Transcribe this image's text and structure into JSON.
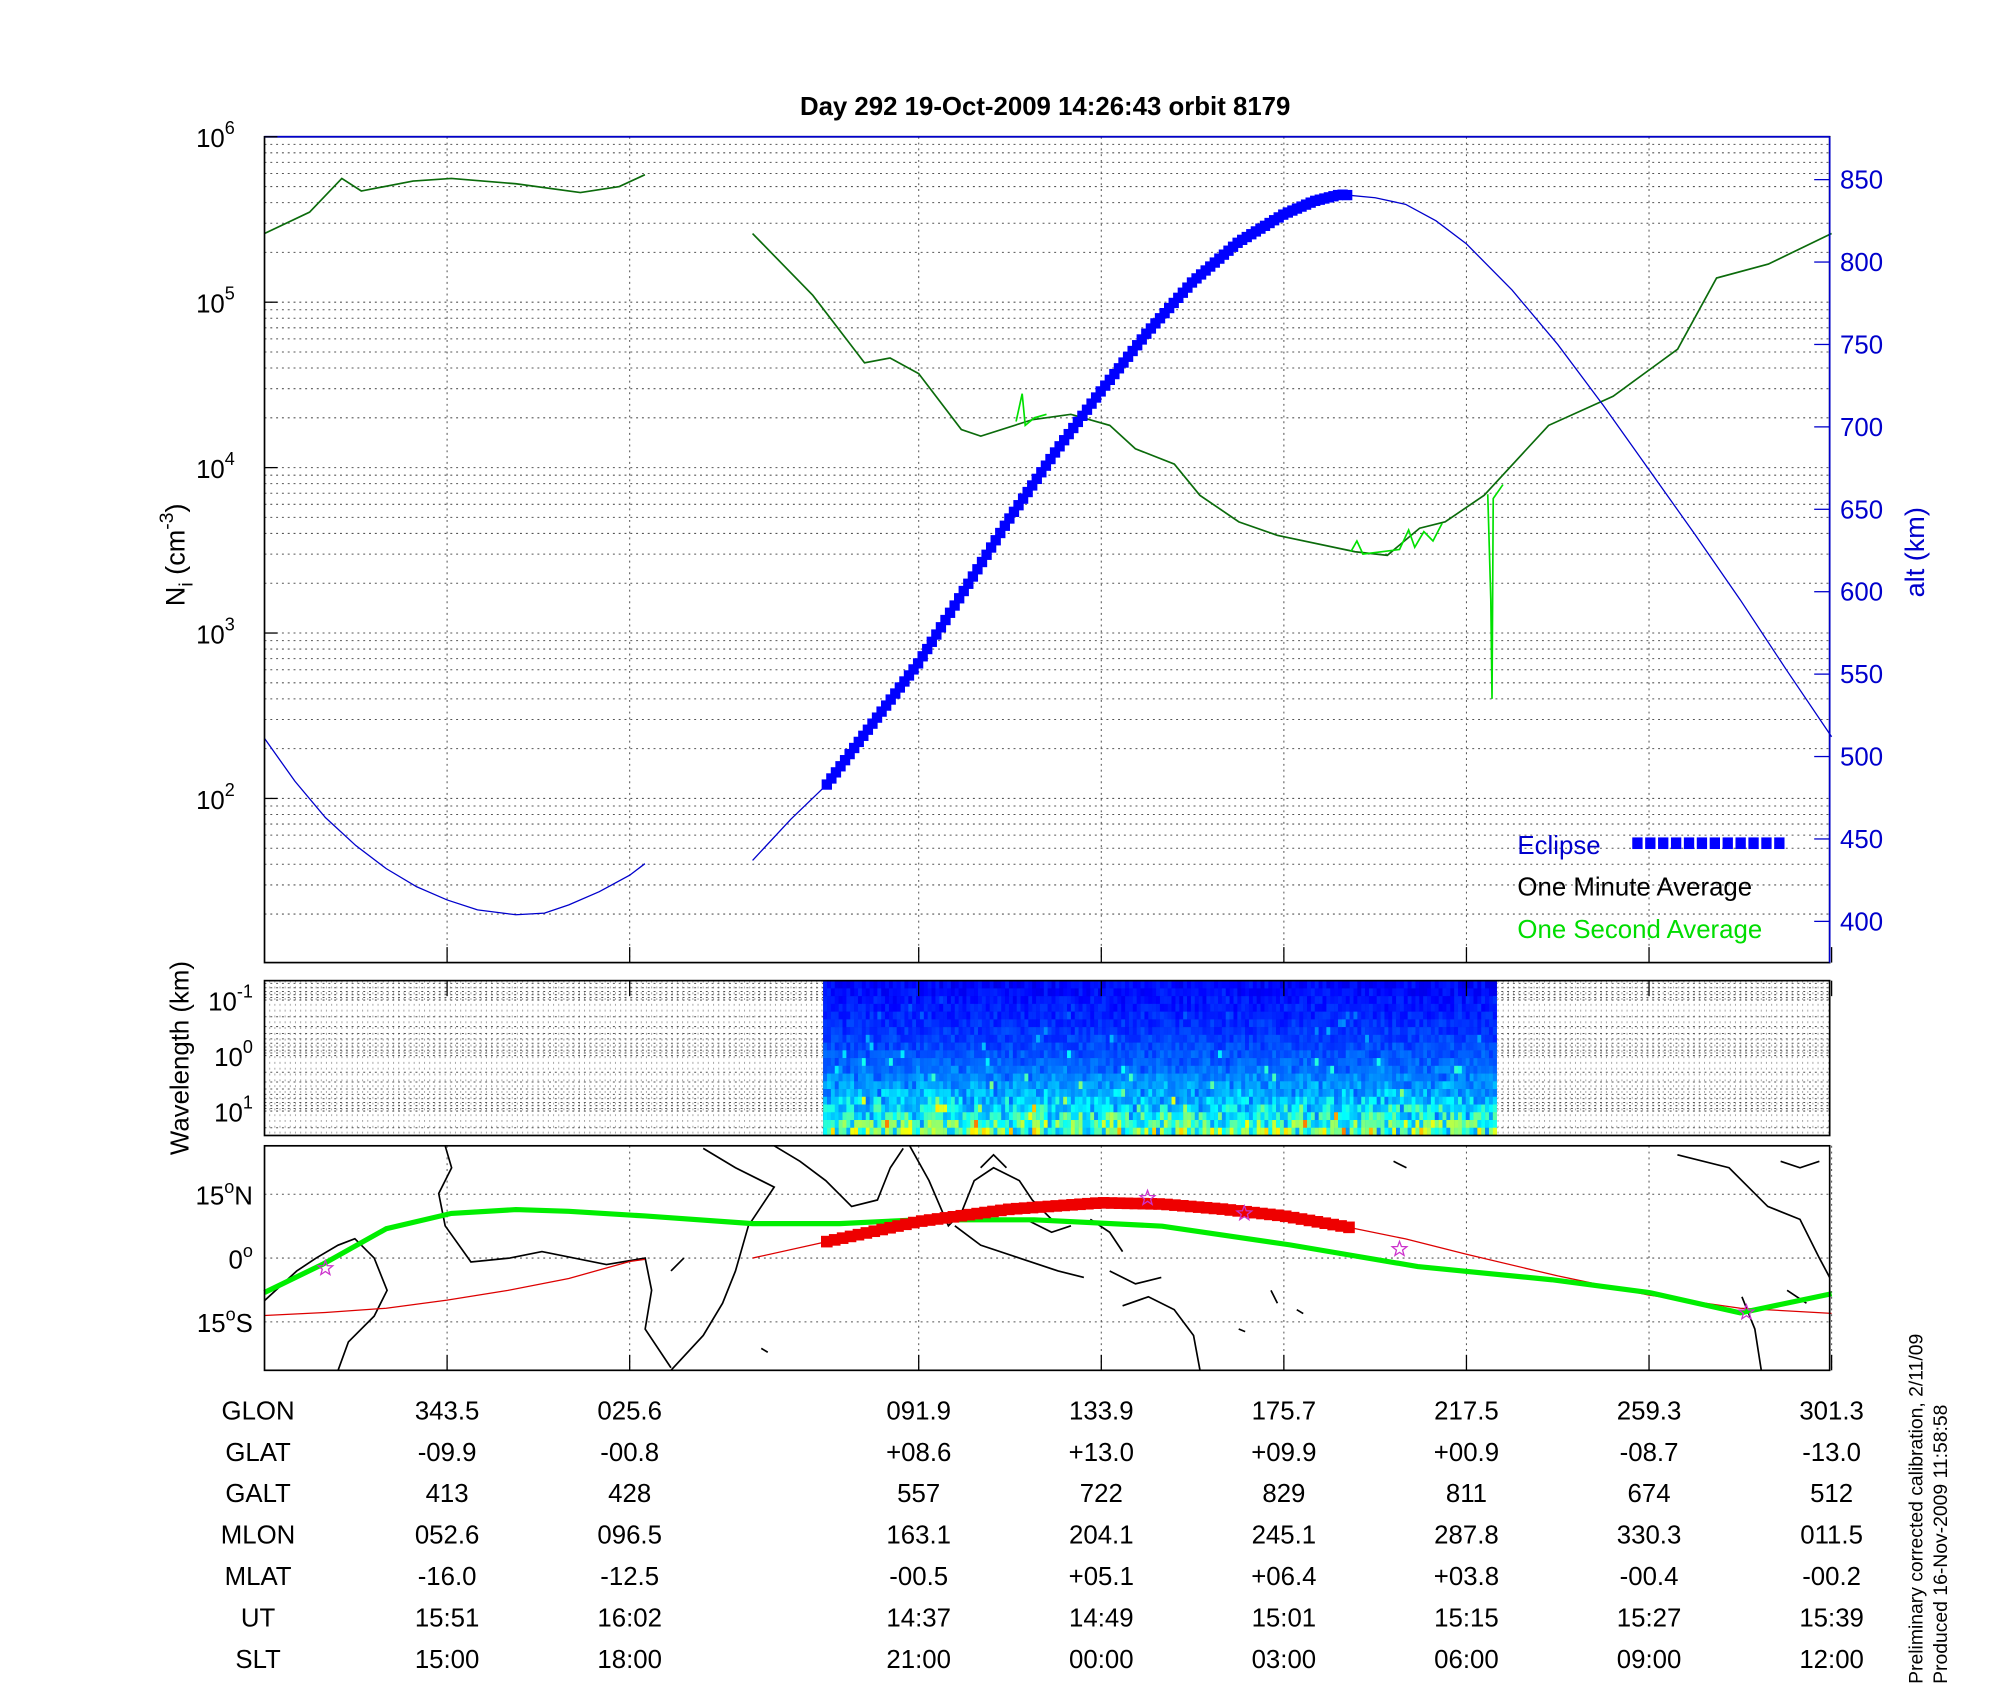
{
  "title": "Day 292  19-Oct-2009 14:26:43   orbit 8179",
  "footer": {
    "line1": "Preliminary corrected calibration, 2/11/09",
    "line2": "Produced 16-Nov-2009 11:58:58"
  },
  "colors": {
    "altitude": "#0000cc",
    "eclipse": "#0000ff",
    "one_minute": "#0b6b0b",
    "one_second": "#00e000",
    "track_green": "#00ee00",
    "track_red": "#dd0000",
    "stars": "#cc33cc"
  },
  "chart_data": [
    {
      "type": "line",
      "x_unit": "SLT (h)",
      "ylabel": "N",
      "ylabel_sub": "i",
      "ylabel_units": " (cm",
      "ylabel_exp": "-3",
      "ylabel_close": ")",
      "yscale": "log",
      "ylim": [
        10,
        1000000
      ],
      "yticks": [
        {
          "base": "10",
          "exp": "6",
          "v": 6
        },
        {
          "base": "10",
          "exp": "5",
          "v": 5
        },
        {
          "base": "10",
          "exp": "4",
          "v": 4
        },
        {
          "base": "10",
          "exp": "3",
          "v": 3
        },
        {
          "base": "10",
          "exp": "2",
          "v": 2
        }
      ],
      "y2label": "alt (km)",
      "y2lim": [
        375,
        876
      ],
      "y2ticks": [
        "850",
        "800",
        "750",
        "700",
        "650",
        "600",
        "550",
        "500",
        "450",
        "400"
      ],
      "grid": true,
      "legend": {
        "position": "bottom-right",
        "entries": [
          {
            "label": "Eclipse"
          },
          {
            "label": "One Minute Average"
          },
          {
            "label": "One Second Average"
          }
        ]
      },
      "series": [
        {
          "name": "One Minute Average",
          "axis": "left",
          "segments": [
            [
              [
                12.0,
                260000.0
              ],
              [
                12.74,
                350000.0
              ],
              [
                13.27,
                560000.0
              ],
              [
                13.59,
                470000.0
              ],
              [
                14.44,
                540000.0
              ],
              [
                15.07,
                560000.0
              ],
              [
                16.13,
                520000.0
              ],
              [
                17.19,
                460000.0
              ],
              [
                17.83,
                500000.0
              ],
              [
                18.25,
                590000.0
              ]
            ],
            [
              [
                18.27,
                260000.0
              ],
              [
                19.26,
                110000.0
              ],
              [
                20.11,
                43000.0
              ],
              [
                20.53,
                46000.0
              ],
              [
                21.0,
                37000.0
              ],
              [
                21.7,
                17000.0
              ],
              [
                22.02,
                15500.0
              ],
              [
                22.87,
                19500.0
              ],
              [
                23.5,
                21000.0
              ],
              [
                24.14,
                18000.0
              ],
              [
                24.56,
                13000.0
              ],
              [
                25.2,
                10500.0
              ],
              [
                25.62,
                6800.0
              ],
              [
                26.26,
                4700.0
              ],
              [
                26.89,
                3900.0
              ],
              [
                28.17,
                3100.0
              ],
              [
                28.7,
                2950.0
              ],
              [
                29.23,
                4300.0
              ],
              [
                29.65,
                4700.0
              ],
              [
                30.29,
                6800.0
              ],
              [
                31.35,
                18000.0
              ],
              [
                32.41,
                27000.0
              ],
              [
                33.47,
                52000.0
              ],
              [
                34.11,
                140000.0
              ],
              [
                34.96,
                170000.0
              ],
              [
                36.0,
                260000.0
              ]
            ]
          ]
        },
        {
          "name": "One Second Average",
          "axis": "left",
          "segments": [
            [
              [
                22.6,
                19000.0
              ],
              [
                22.7,
                28000.0
              ],
              [
                22.75,
                18000.0
              ],
              [
                22.9,
                20000.0
              ],
              [
                23.1,
                21000.0
              ]
            ],
            [
              [
                28.1,
                3100.0
              ],
              [
                28.2,
                3600.0
              ],
              [
                28.3,
                3000.0
              ],
              [
                28.9,
                3200.0
              ],
              [
                29.05,
                4200.0
              ],
              [
                29.15,
                3300.0
              ],
              [
                29.3,
                4100.0
              ],
              [
                29.45,
                3600.0
              ],
              [
                29.6,
                4600.0
              ]
            ],
            [
              [
                30.35,
                6900.0
              ],
              [
                30.4,
                1600.0
              ],
              [
                30.42,
                400
              ],
              [
                30.44,
                6500.0
              ],
              [
                30.6,
                7900.0
              ]
            ]
          ]
        },
        {
          "name": "alt",
          "axis": "right",
          "segments": [
            [
              [
                12.0,
                511
              ],
              [
                12.5,
                485
              ],
              [
                13.0,
                463
              ],
              [
                13.5,
                446
              ],
              [
                14.0,
                432
              ],
              [
                14.5,
                421
              ],
              [
                15.0,
                413
              ],
              [
                15.5,
                407
              ],
              [
                16.13,
                404
              ],
              [
                16.6,
                405
              ],
              [
                17.0,
                410
              ],
              [
                17.5,
                418
              ],
              [
                18.0,
                428
              ],
              [
                18.25,
                435
              ]
            ],
            [
              [
                18.27,
                437
              ],
              [
                18.9,
                462
              ],
              [
                19.49,
                483
              ],
              [
                20.2,
                518
              ],
              [
                21.0,
                557
              ],
              [
                21.75,
                601
              ],
              [
                22.5,
                645
              ],
              [
                23.25,
                685
              ],
              [
                24.0,
                722
              ],
              [
                24.75,
                757
              ],
              [
                25.5,
                788
              ],
              [
                26.25,
                812
              ],
              [
                27.0,
                829
              ],
              [
                27.5,
                837
              ],
              [
                27.93,
                841
              ],
              [
                28.5,
                839
              ],
              [
                29.0,
                835
              ],
              [
                29.5,
                825
              ],
              [
                30.0,
                811
              ],
              [
                30.75,
                783
              ],
              [
                31.5,
                750
              ],
              [
                32.25,
                713
              ],
              [
                33.0,
                674
              ],
              [
                33.75,
                635
              ],
              [
                34.5,
                595
              ],
              [
                35.25,
                553
              ],
              [
                36.0,
                512
              ]
            ]
          ]
        }
      ],
      "eclipse_range": [
        19.49,
        28.08
      ]
    },
    {
      "type": "heatmap",
      "ylabel": "Wavelength (km)",
      "yscale": "log",
      "yticks": [
        {
          "base": "10",
          "exp": "-1",
          "v": -1
        },
        {
          "base": "10",
          "exp": "0",
          "v": 0
        },
        {
          "base": "10",
          "exp": "1",
          "v": 1
        }
      ],
      "ylim_log": [
        -1.35,
        1.44
      ],
      "x_range": [
        19.43,
        30.44
      ],
      "colormap": "jet"
    },
    {
      "type": "line",
      "subtype": "map",
      "yticks": [
        {
          "v": 15,
          "label": "15",
          "suffix": "N"
        },
        {
          "v": 0,
          "label": "0",
          "suffix": ""
        },
        {
          "v": -15,
          "label": "15",
          "suffix": "S"
        }
      ],
      "ylim": [
        -26.4,
        26.4
      ],
      "green_track": [
        [
          12.0,
          -8.1
        ],
        [
          12.95,
          -1.5
        ],
        [
          14.0,
          6.9
        ],
        [
          15.07,
          10.5
        ],
        [
          16.13,
          11.4
        ],
        [
          17.0,
          11.0
        ],
        [
          18.25,
          9.9
        ],
        [
          18.27,
          8.1
        ],
        [
          19.7,
          8.1
        ],
        [
          21.0,
          9.0
        ],
        [
          22.9,
          9.0
        ],
        [
          25.0,
          7.5
        ],
        [
          27.1,
          3.1
        ],
        [
          29.2,
          -2.0
        ],
        [
          31.4,
          -5.1
        ],
        [
          33.0,
          -8.1
        ],
        [
          34.5,
          -12.9
        ],
        [
          36.0,
          -8.4
        ]
      ],
      "red_track": [
        [
          [
            12.0,
            -13.5
          ],
          [
            13.0,
            -12.8
          ],
          [
            14.0,
            -11.8
          ],
          [
            15.0,
            -9.9
          ],
          [
            16.0,
            -7.6
          ],
          [
            17.0,
            -4.8
          ],
          [
            18.0,
            -0.8
          ],
          [
            18.25,
            -0.3
          ]
        ],
        [
          [
            18.27,
            0.0
          ],
          [
            19.5,
            3.9
          ],
          [
            21.0,
            8.6
          ],
          [
            22.5,
            11.5
          ],
          [
            24.0,
            13.0
          ],
          [
            25.0,
            12.7
          ],
          [
            26.0,
            11.5
          ],
          [
            27.0,
            9.9
          ],
          [
            28.08,
            7.2
          ],
          [
            29.0,
            4.5
          ],
          [
            30.0,
            0.9
          ],
          [
            31.5,
            -4.2
          ],
          [
            33.0,
            -8.7
          ],
          [
            34.5,
            -11.8
          ],
          [
            36.0,
            -13.0
          ]
        ]
      ],
      "eclipse_range": [
        19.49,
        28.08
      ],
      "stars": [
        [
          13.0,
          -2.4
        ],
        [
          24.76,
          14.1
        ],
        [
          26.35,
          10.5
        ],
        [
          28.9,
          2.1
        ],
        [
          34.6,
          -12.8
        ]
      ]
    }
  ],
  "table": {
    "slt_positions": [
      15,
      18,
      21,
      24,
      27,
      30,
      33,
      36
    ],
    "rows": [
      {
        "label": "GLON",
        "values": [
          "343.5",
          "025.6",
          "091.9",
          "133.9",
          "175.7",
          "217.5",
          "259.3",
          "301.3"
        ]
      },
      {
        "label": "GLAT",
        "values": [
          "-09.9",
          "-00.8",
          "+08.6",
          "+13.0",
          "+09.9",
          "+00.9",
          "-08.7",
          "-13.0"
        ]
      },
      {
        "label": "GALT",
        "values": [
          "413",
          "428",
          "557",
          "722",
          "829",
          "811",
          "674",
          "512"
        ]
      },
      {
        "label": "MLON",
        "values": [
          "052.6",
          "096.5",
          "163.1",
          "204.1",
          "245.1",
          "287.8",
          "330.3",
          "011.5"
        ]
      },
      {
        "label": "MLAT",
        "values": [
          "-16.0",
          "-12.5",
          "-00.5",
          "+05.1",
          "+06.4",
          "+03.8",
          "-00.4",
          "-00.2"
        ]
      },
      {
        "label": "UT",
        "values": [
          "15:51",
          "16:02",
          "14:37",
          "14:49",
          "15:01",
          "15:15",
          "15:27",
          "15:39"
        ]
      },
      {
        "label": "SLT",
        "values": [
          "15:00",
          "18:00",
          "21:00",
          "00:00",
          "03:00",
          "06:00",
          "09:00",
          "12:00"
        ]
      }
    ]
  }
}
